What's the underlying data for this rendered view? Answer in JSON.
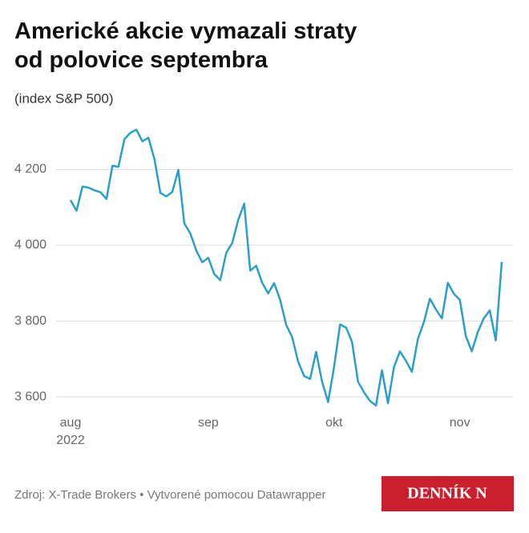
{
  "chart_data": {
    "type": "line",
    "title": "Americké akcie vymazali straty od polovice septembra",
    "subtitle": "(index S&P 500)",
    "categories": [
      "aug",
      null,
      null,
      null,
      null,
      null,
      null,
      null,
      null,
      null,
      null,
      null,
      null,
      null,
      null,
      null,
      null,
      null,
      null,
      null,
      null,
      null,
      null,
      "sep",
      null,
      null,
      null,
      null,
      null,
      null,
      null,
      null,
      null,
      null,
      null,
      null,
      null,
      null,
      null,
      null,
      null,
      null,
      null,
      null,
      "okt",
      null,
      null,
      null,
      null,
      null,
      null,
      null,
      null,
      null,
      null,
      null,
      null,
      null,
      null,
      null,
      null,
      null,
      null,
      null,
      null,
      "nov",
      null,
      null,
      null,
      null,
      null,
      null,
      null
    ],
    "year_label": "2022",
    "values": [
      4119,
      4091,
      4155,
      4152,
      4145,
      4140,
      4122,
      4210,
      4207,
      4280,
      4297,
      4305,
      4274,
      4284,
      4228,
      4138,
      4129,
      4141,
      4199,
      4058,
      4031,
      3986,
      3955,
      3967,
      3924,
      3908,
      3980,
      4006,
      4067,
      4110,
      3933,
      3946,
      3901,
      3873,
      3900,
      3856,
      3790,
      3758,
      3693,
      3655,
      3647,
      3719,
      3640,
      3586,
      3678,
      3791,
      3783,
      3745,
      3640,
      3612,
      3589,
      3577,
      3670,
      3583,
      3678,
      3720,
      3695,
      3666,
      3753,
      3797,
      3859,
      3831,
      3807,
      3901,
      3872,
      3856,
      3760,
      3720,
      3771,
      3807,
      3828,
      3749,
      3956
    ],
    "color": "#2b9fca",
    "ylim": [
      3560,
      4330
    ],
    "yticks": [
      {
        "value": 3600,
        "label": "3 600"
      },
      {
        "value": 3800,
        "label": "3 800"
      },
      {
        "value": 4000,
        "label": "4 000"
      },
      {
        "value": 4200,
        "label": "4 200"
      }
    ],
    "grid": true,
    "source": "Zdroj: X-Trade Brokers • Vytvorené pomocou Datawrapper",
    "logo": "DENNÍK N"
  }
}
